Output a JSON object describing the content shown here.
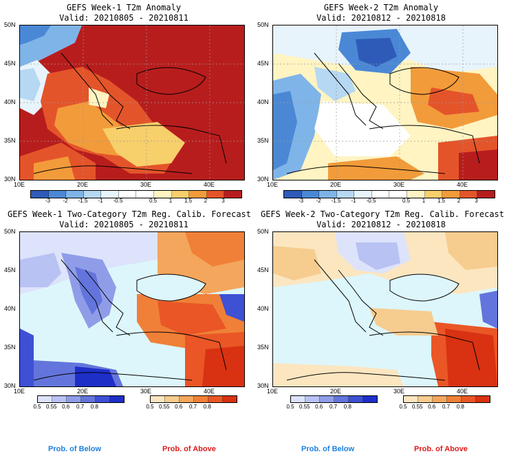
{
  "panels": [
    {
      "title": "GEFS Week-1 T2m Anomaly",
      "valid": "Valid: 20210805 - 20210811"
    },
    {
      "title": "GEFS Week-2 T2m Anomaly",
      "valid": "Valid: 20210812 - 20210818"
    },
    {
      "title": "GEFS Week-1 Two-Category T2m Reg. Calib. Forecast",
      "valid": "Valid: 20210805 - 20210811"
    },
    {
      "title": "GEFS Week-2 Two-Category T2m Reg. Calib. Forecast",
      "valid": "Valid: 20210812 - 20210818"
    }
  ],
  "axes": {
    "lat_labels": [
      "50N",
      "45N",
      "40N",
      "35N",
      "30N"
    ],
    "lon_labels": [
      "10E",
      "20E",
      "30E",
      "40E"
    ]
  },
  "anomaly_colorbar": {
    "colors": [
      "#2f5bb8",
      "#4a88d6",
      "#7fb4e8",
      "#b6d8f2",
      "#e8f4fb",
      "#ffffff",
      "#ffffff",
      "#fff4c2",
      "#f7cf6b",
      "#f29b3a",
      "#e4542a",
      "#b81d1d"
    ],
    "ticks": [
      "-3",
      "-2",
      "-1.5",
      "-1",
      "-0.5",
      "0.5",
      "1",
      "1.5",
      "2",
      "3"
    ]
  },
  "below_colorbar": {
    "colors": [
      "#dde3fb",
      "#b8c2f3",
      "#8f9de8",
      "#6375dc",
      "#3e50d4",
      "#1e2fc8"
    ],
    "ticks": [
      "0.5",
      "0.55",
      "0.6",
      "0.7",
      "0.8"
    ]
  },
  "above_colorbar": {
    "colors": [
      "#fbe6c0",
      "#f7cc8f",
      "#f4a65c",
      "#f08038",
      "#ea5626",
      "#d83212"
    ],
    "ticks": [
      "0.5",
      "0.55",
      "0.6",
      "0.7",
      "0.8"
    ]
  },
  "prob_labels": {
    "below": "Prob. of Below",
    "above": "Prob. of Above"
  },
  "colors": {
    "below_label": "#1e7fe0",
    "above_label": "#e01a1a",
    "sea": "#ddf6fb"
  }
}
